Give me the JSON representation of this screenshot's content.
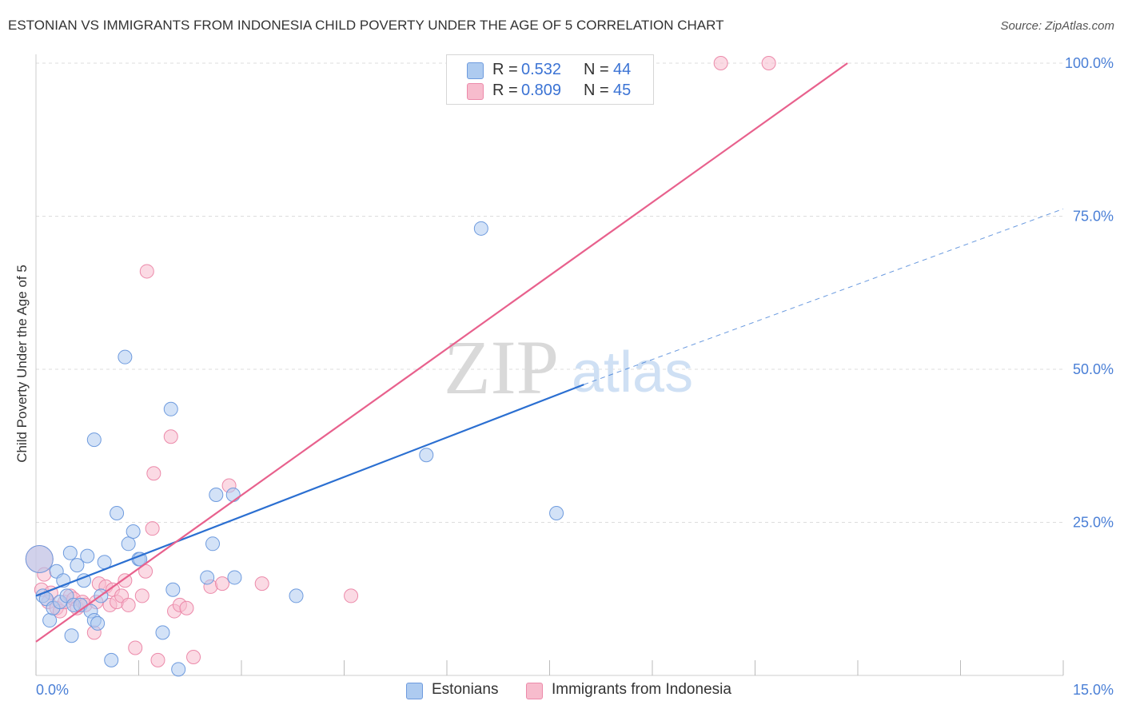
{
  "title": "ESTONIAN VS IMMIGRANTS FROM INDONESIA CHILD POVERTY UNDER THE AGE OF 5 CORRELATION CHART",
  "source": "Source: ZipAtlas.com",
  "watermark": {
    "zip": "ZIP",
    "atlas": "atlas"
  },
  "legend": {
    "r_label": "R =",
    "n_label": "N =",
    "items": [
      {
        "r": "0.532",
        "n": "44",
        "swatch": "#b7d0f3",
        "swatch_border": "#7aa5e6"
      },
      {
        "r": "0.809",
        "n": "45",
        "swatch": "#f8c4d3",
        "swatch_border": "#ef93b0"
      }
    ]
  },
  "series_legend": [
    "Estonians",
    "Immigrants from Indonesia"
  ],
  "colors": {
    "blue_fill": "#aecbf0",
    "blue_stroke": "#6e9bde",
    "blue_line": "#2b6fd1",
    "pink_fill": "#f7bccd",
    "pink_stroke": "#ec8aaa",
    "pink_line": "#e8618d",
    "grid": "#dddddd",
    "axis_text": "#3b73d4",
    "tick_label": "#4a7fd6"
  },
  "chart_data": {
    "type": "scatter",
    "title": "ESTONIAN VS IMMIGRANTS FROM INDONESIA CHILD POVERTY UNDER THE AGE OF 5 CORRELATION CHART",
    "xlabel": "",
    "ylabel": "Child Poverty Under the Age of 5",
    "xlim": [
      0,
      15
    ],
    "ylim": [
      0,
      100
    ],
    "x_tick_labels": [
      "0.0%",
      "15.0%"
    ],
    "y_tick_labels": [
      "25.0%",
      "50.0%",
      "75.0%",
      "100.0%"
    ],
    "y_ticks": [
      25,
      50,
      75,
      100
    ],
    "grid": true,
    "legend_position": "top-center",
    "series": [
      {
        "name": "Estonians",
        "color": "#6e9bde",
        "r": 0.532,
        "n": 44,
        "trendline": {
          "x": [
            0.0,
            8.0
          ],
          "y": [
            13.0,
            47.5
          ],
          "dashed_extension": {
            "x": [
              8.0,
              15.0
            ],
            "y": [
              47.5,
              76.2
            ]
          }
        },
        "points": [
          {
            "x": 0.05,
            "y": 19.0,
            "size": "large"
          },
          {
            "x": 0.1,
            "y": 13.0
          },
          {
            "x": 0.15,
            "y": 12.5
          },
          {
            "x": 0.2,
            "y": 9.0
          },
          {
            "x": 0.25,
            "y": 11.0
          },
          {
            "x": 0.3,
            "y": 17.0
          },
          {
            "x": 0.35,
            "y": 12.0
          },
          {
            "x": 0.4,
            "y": 15.5
          },
          {
            "x": 0.45,
            "y": 13.0
          },
          {
            "x": 0.5,
            "y": 20.0
          },
          {
            "x": 0.52,
            "y": 6.5
          },
          {
            "x": 0.55,
            "y": 11.5
          },
          {
            "x": 0.6,
            "y": 18.0
          },
          {
            "x": 0.65,
            "y": 11.5
          },
          {
            "x": 0.7,
            "y": 15.5
          },
          {
            "x": 0.75,
            "y": 19.5
          },
          {
            "x": 0.8,
            "y": 10.5
          },
          {
            "x": 0.85,
            "y": 9.0
          },
          {
            "x": 0.85,
            "y": 38.5
          },
          {
            "x": 0.9,
            "y": 8.5
          },
          {
            "x": 0.95,
            "y": 13.0
          },
          {
            "x": 1.0,
            "y": 18.5
          },
          {
            "x": 1.1,
            "y": 2.5
          },
          {
            "x": 1.18,
            "y": 26.5
          },
          {
            "x": 1.3,
            "y": 52.0
          },
          {
            "x": 1.35,
            "y": 21.5
          },
          {
            "x": 1.42,
            "y": 23.5
          },
          {
            "x": 1.5,
            "y": 19.0
          },
          {
            "x": 1.52,
            "y": 19.0
          },
          {
            "x": 1.85,
            "y": 7.0
          },
          {
            "x": 1.97,
            "y": 43.5
          },
          {
            "x": 2.0,
            "y": 14.0
          },
          {
            "x": 2.08,
            "y": 1.0
          },
          {
            "x": 2.5,
            "y": 16.0
          },
          {
            "x": 2.58,
            "y": 21.5
          },
          {
            "x": 2.63,
            "y": 29.5
          },
          {
            "x": 2.9,
            "y": 16.0
          },
          {
            "x": 2.88,
            "y": 29.5
          },
          {
            "x": 3.8,
            "y": 13.0
          },
          {
            "x": 5.7,
            "y": 36.0
          },
          {
            "x": 6.5,
            "y": 73.0
          },
          {
            "x": 7.6,
            "y": 26.5
          }
        ]
      },
      {
        "name": "Immigrants from Indonesia",
        "color": "#ec8aaa",
        "r": 0.809,
        "n": 45,
        "trendline": {
          "x": [
            0.0,
            11.85
          ],
          "y": [
            5.5,
            100.0
          ]
        },
        "points": [
          {
            "x": 0.05,
            "y": 19.0,
            "size": "large"
          },
          {
            "x": 0.08,
            "y": 14.0
          },
          {
            "x": 0.12,
            "y": 16.5
          },
          {
            "x": 0.18,
            "y": 12.0
          },
          {
            "x": 0.22,
            "y": 13.5
          },
          {
            "x": 0.3,
            "y": 11.0
          },
          {
            "x": 0.35,
            "y": 10.5
          },
          {
            "x": 0.42,
            "y": 12.0
          },
          {
            "x": 0.5,
            "y": 13.0
          },
          {
            "x": 0.55,
            "y": 12.5
          },
          {
            "x": 0.6,
            "y": 11.0
          },
          {
            "x": 0.68,
            "y": 12.0
          },
          {
            "x": 0.72,
            "y": 11.5
          },
          {
            "x": 0.85,
            "y": 7.0
          },
          {
            "x": 0.88,
            "y": 12.0
          },
          {
            "x": 0.92,
            "y": 15.0
          },
          {
            "x": 1.02,
            "y": 14.5
          },
          {
            "x": 1.08,
            "y": 11.5
          },
          {
            "x": 1.12,
            "y": 14.0
          },
          {
            "x": 1.18,
            "y": 12.0
          },
          {
            "x": 1.25,
            "y": 13.0
          },
          {
            "x": 1.3,
            "y": 15.5
          },
          {
            "x": 1.35,
            "y": 11.5
          },
          {
            "x": 1.45,
            "y": 4.5
          },
          {
            "x": 1.55,
            "y": 13.0
          },
          {
            "x": 1.6,
            "y": 17.0
          },
          {
            "x": 1.62,
            "y": 66.0
          },
          {
            "x": 1.7,
            "y": 24.0
          },
          {
            "x": 1.72,
            "y": 33.0
          },
          {
            "x": 1.78,
            "y": 2.5
          },
          {
            "x": 1.97,
            "y": 39.0
          },
          {
            "x": 2.02,
            "y": 10.5
          },
          {
            "x": 2.1,
            "y": 11.5
          },
          {
            "x": 2.2,
            "y": 11.0
          },
          {
            "x": 2.3,
            "y": 3.0
          },
          {
            "x": 2.55,
            "y": 14.5
          },
          {
            "x": 2.72,
            "y": 15.0
          },
          {
            "x": 2.82,
            "y": 31.0
          },
          {
            "x": 3.3,
            "y": 15.0
          },
          {
            "x": 4.6,
            "y": 13.0
          },
          {
            "x": 10.0,
            "y": 100.0
          },
          {
            "x": 10.7,
            "y": 100.0
          }
        ]
      }
    ]
  }
}
